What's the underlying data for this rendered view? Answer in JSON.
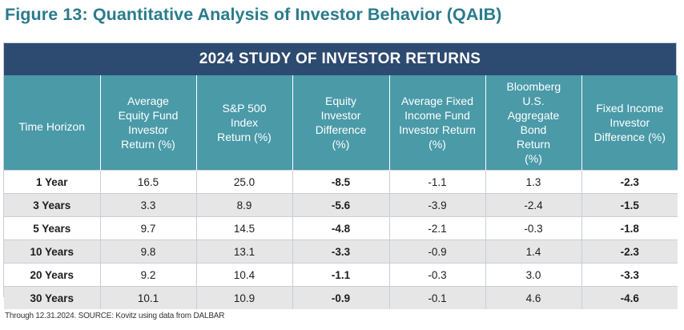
{
  "figure_title": "Figure 13: Quantitative Analysis of Investor Behavior (QAIB)",
  "banner": "2024 STUDY OF INVESTOR RETURNS",
  "columns": [
    "Time Horizon",
    "Average Equity Fund Investor Return (%)",
    "S&P 500 Index Return (%)",
    "Equity Investor Difference (%)",
    "Average Fixed Income Fund Investor Return (%)",
    "Bloomberg U.S. Aggregate Bond Return (%)",
    "Fixed Income Investor Difference (%)"
  ],
  "rows": [
    [
      "1 Year",
      "16.5",
      "25.0",
      "-8.5",
      "-1.1",
      "1.3",
      "-2.3"
    ],
    [
      "3 Years",
      "3.3",
      "8.9",
      "-5.6",
      "-3.9",
      "-2.4",
      "-1.5"
    ],
    [
      "5 Years",
      "9.7",
      "14.5",
      "-4.8",
      "-2.1",
      "-0.3",
      "-1.8"
    ],
    [
      "10 Years",
      "9.8",
      "13.1",
      "-3.3",
      "-0.9",
      "1.4",
      "-2.3"
    ],
    [
      "20 Years",
      "9.2",
      "10.4",
      "-1.1",
      "-0.3",
      "3.0",
      "-3.3"
    ],
    [
      "30 Years",
      "10.1",
      "10.9",
      "-0.9",
      "-0.1",
      "4.6",
      "-4.6"
    ]
  ],
  "source": "Through 12.31.2024. SOURCE: Kovitz using data from DALBAR",
  "colors": {
    "title": "#2a7b8c",
    "banner_bg": "#2d4a70",
    "header_bg": "#4a9aa8",
    "alt_row_bg": "#e6e6e6"
  }
}
